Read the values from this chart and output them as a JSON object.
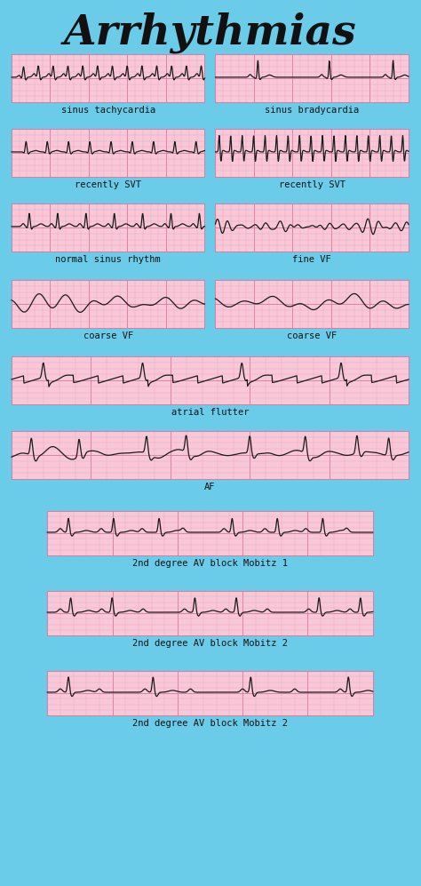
{
  "title": "Arrhythmias",
  "bg_color": "#6acce8",
  "title_color": "#111111",
  "ecg_bg": "#f8c8d8",
  "ecg_line_color": "#1a1a1a",
  "grid_minor_color": "#e8a0b8",
  "grid_major_color": "#d878a0",
  "label_color": "#111111",
  "labels": [
    "sinus tachycardia",
    "sinus bradycardia",
    "recently SVT",
    "recently SVT",
    "normal sinus rhythm",
    "fine VF",
    "coarse VF",
    "coarse VF",
    "atrial flutter",
    "AF",
    "2nd degree AV block Mobitz 1",
    "2nd degree AV block Mobitz 2",
    "2nd degree AV block Mobitz 2"
  ]
}
